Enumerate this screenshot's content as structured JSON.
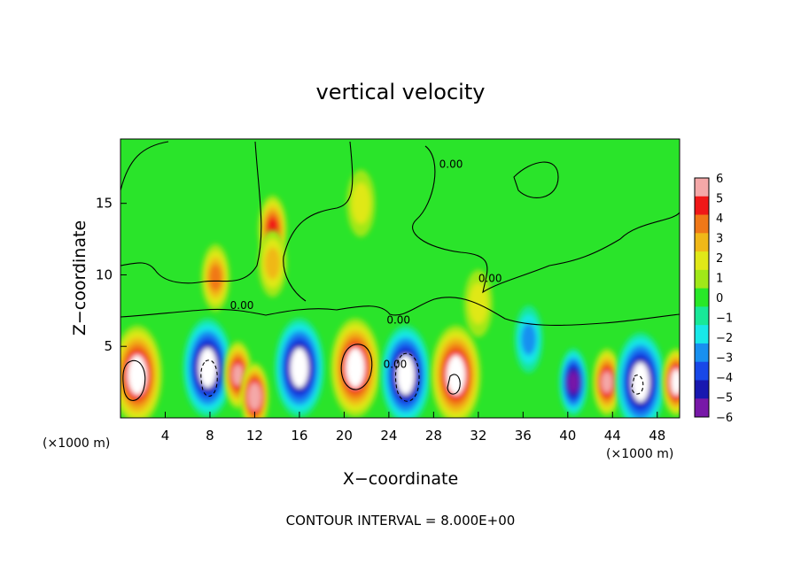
{
  "chart_data": {
    "type": "heatmap",
    "title": "vertical velocity",
    "xlabel": "X−coordinate",
    "ylabel": "Z−coordinate",
    "x_unit_left": "(×1000 m)",
    "x_unit_right": "(×1000 m)",
    "footer": "CONTOUR INTERVAL = 8.000E+00",
    "xlim": [
      0,
      50
    ],
    "ylim": [
      0,
      19.5
    ],
    "x_ticks": [
      4,
      8,
      12,
      16,
      20,
      24,
      28,
      32,
      36,
      40,
      44,
      48
    ],
    "x_tick_labels": [
      "4",
      "8",
      "12",
      "16",
      "20",
      "24",
      "28",
      "32",
      "36",
      "40",
      "44",
      "48"
    ],
    "y_ticks": [
      5,
      10,
      15
    ],
    "y_tick_labels": [
      "5",
      "10",
      "15"
    ],
    "colorbar": {
      "min": -6,
      "max": 6,
      "ticks": [
        6,
        5,
        4,
        3,
        2,
        1,
        0,
        -1,
        -2,
        -3,
        -4,
        -5,
        -6
      ],
      "tick_labels": [
        "6",
        "5",
        "4",
        "3",
        "2",
        "1",
        "0",
        "−1",
        "−2",
        "−3",
        "−4",
        "−5",
        "−6"
      ],
      "colors": [
        "#f4a8a8",
        "#f01818",
        "#f07818",
        "#f0b818",
        "#e0e818",
        "#a0e818",
        "#28e828",
        "#18e898",
        "#18e8e8",
        "#1890f0",
        "#1848e8",
        "#1818b0",
        "#7818a8"
      ]
    },
    "cells": [
      {
        "x": 1.5,
        "z": 3.0,
        "value": 20,
        "shape": "core"
      },
      {
        "x": 7.8,
        "z": 3.5,
        "value": -18,
        "shape": "core"
      },
      {
        "x": 10.5,
        "z": 3.0,
        "value": 5,
        "shape": "cell"
      },
      {
        "x": 12.0,
        "z": 1.5,
        "value": 6,
        "shape": "cell"
      },
      {
        "x": 16.0,
        "z": 3.5,
        "value": -12,
        "shape": "core"
      },
      {
        "x": 21.0,
        "z": 3.5,
        "value": 22,
        "shape": "core"
      },
      {
        "x": 25.5,
        "z": 3.0,
        "value": -20,
        "shape": "core"
      },
      {
        "x": 30.0,
        "z": 3.0,
        "value": 16,
        "shape": "core"
      },
      {
        "x": 40.5,
        "z": 2.5,
        "value": -5,
        "shape": "cell"
      },
      {
        "x": 43.5,
        "z": 2.5,
        "value": 5,
        "shape": "cell"
      },
      {
        "x": 46.5,
        "z": 2.5,
        "value": -10,
        "shape": "core"
      },
      {
        "x": 49.7,
        "z": 2.5,
        "value": 8,
        "shape": "cell"
      },
      {
        "x": 13.6,
        "z": 13.2,
        "value": 4,
        "shape": "cell"
      },
      {
        "x": 13.6,
        "z": 10.8,
        "value": 2,
        "shape": "cell"
      },
      {
        "x": 36.5,
        "z": 5.5,
        "value": -2,
        "shape": "cell"
      },
      {
        "x": 8.5,
        "z": 9.8,
        "value": 3,
        "shape": "cell"
      },
      {
        "x": 21.5,
        "z": 15.0,
        "value": 1,
        "shape": "cell"
      },
      {
        "x": 32.0,
        "z": 8.0,
        "value": 1,
        "shape": "cell"
      }
    ],
    "contour_labels": [
      {
        "text": "0.00",
        "x": 9.8,
        "z": 7.6
      },
      {
        "text": "0.00",
        "x": 23.8,
        "z": 6.6
      },
      {
        "text": "0.00",
        "x": 28.5,
        "z": 17.5
      },
      {
        "text": "0.00",
        "x": 32.0,
        "z": 9.5
      },
      {
        "text": "0.00",
        "x": 23.5,
        "z": 3.5
      }
    ]
  }
}
